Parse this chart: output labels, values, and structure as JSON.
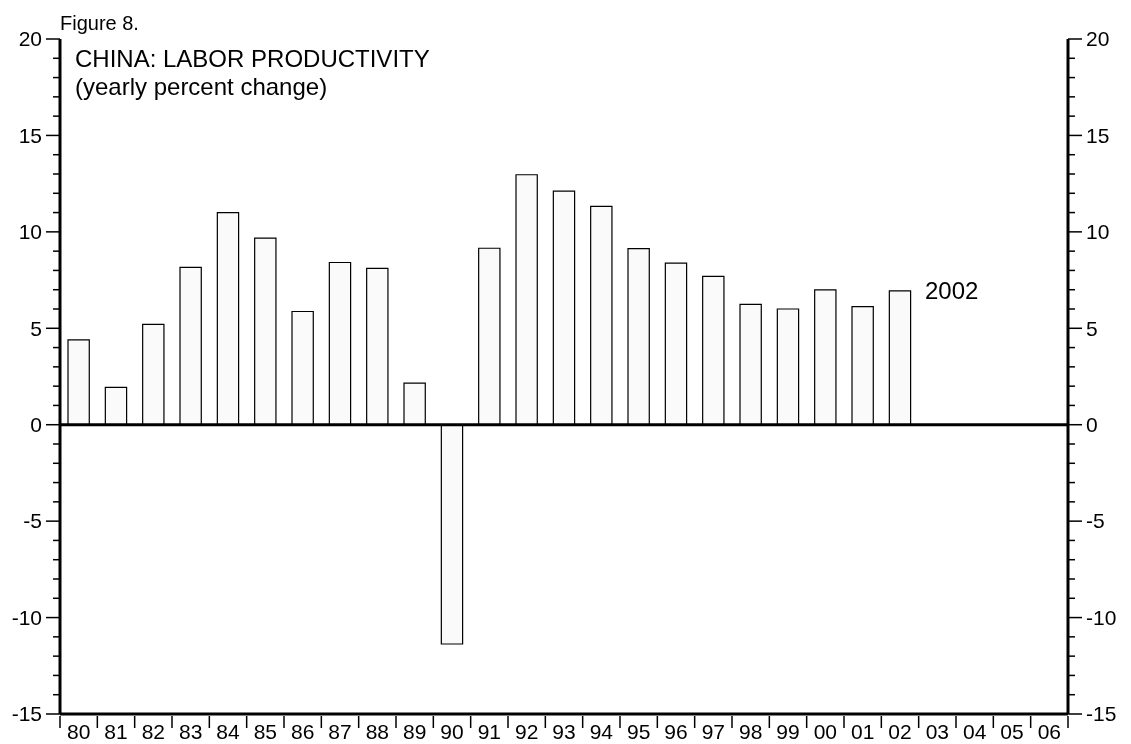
{
  "chart_data": {
    "type": "bar",
    "title": "CHINA: LABOR PRODUCTIVITY",
    "subtitle": "(yearly percent change)",
    "annotations": [
      "Figure 8.",
      {
        "text": "2002",
        "x": "02",
        "y": 6.94
      }
    ],
    "categories": [
      "80",
      "81",
      "82",
      "83",
      "84",
      "85",
      "86",
      "87",
      "88",
      "89",
      "90",
      "91",
      "92",
      "93",
      "94",
      "95",
      "96",
      "97",
      "98",
      "99",
      "00",
      "01",
      "02",
      "03",
      "04",
      "05",
      "06"
    ],
    "values": [
      4.4,
      1.94,
      5.2,
      8.16,
      11.0,
      9.68,
      5.87,
      8.41,
      8.11,
      2.16,
      -11.37,
      9.15,
      12.96,
      12.11,
      11.32,
      9.13,
      8.38,
      7.69,
      6.24,
      6.0,
      6.99,
      6.12,
      6.94,
      null,
      null,
      null,
      null
    ],
    "color": "#fafafa",
    "ref_lines": [
      {
        "axis": "y",
        "value": 0
      }
    ],
    "ylim": [
      -15,
      20
    ],
    "yticks": [
      -15,
      {
        "value": -14,
        "label": null
      },
      {
        "value": -13,
        "label": null
      },
      {
        "value": -12,
        "label": null
      },
      {
        "value": -11,
        "label": null
      },
      -10,
      {
        "value": -9,
        "label": null
      },
      {
        "value": -8,
        "label": null
      },
      {
        "value": -7,
        "label": null
      },
      {
        "value": -6,
        "label": null
      },
      -5,
      {
        "value": -4,
        "label": null
      },
      {
        "value": -3,
        "label": null
      },
      {
        "value": -2,
        "label": null
      },
      {
        "value": -1,
        "label": null
      },
      0,
      {
        "value": 1,
        "label": null
      },
      {
        "value": 2,
        "label": null
      },
      {
        "value": 3,
        "label": null
      },
      {
        "value": 4,
        "label": null
      },
      5,
      {
        "value": 6,
        "label": null
      },
      {
        "value": 7,
        "label": null
      },
      {
        "value": 8,
        "label": null
      },
      {
        "value": 9,
        "label": null
      },
      10,
      {
        "value": 11,
        "label": null
      },
      {
        "value": 12,
        "label": null
      },
      {
        "value": 13,
        "label": null
      },
      {
        "value": 14,
        "label": null
      },
      15,
      {
        "value": 16,
        "label": null
      },
      {
        "value": 17,
        "label": null
      },
      {
        "value": 18,
        "label": null
      },
      {
        "value": 19,
        "label": null
      },
      20
    ],
    "y2lim": [
      -15,
      20
    ],
    "y2ticks": [
      -15,
      {
        "value": -14,
        "label": null
      },
      {
        "value": -13,
        "label": null
      },
      {
        "value": -12,
        "label": null
      },
      {
        "value": -11,
        "label": null
      },
      -10,
      {
        "value": -9,
        "label": null
      },
      {
        "value": -8,
        "label": null
      },
      {
        "value": -7,
        "label": null
      },
      {
        "value": -6,
        "label": null
      },
      -5,
      {
        "value": -4,
        "label": null
      },
      {
        "value": -3,
        "label": null
      },
      {
        "value": -2,
        "label": null
      },
      {
        "value": -1,
        "label": null
      },
      0,
      {
        "value": 1,
        "label": null
      },
      {
        "value": 2,
        "label": null
      },
      {
        "value": 3,
        "label": null
      },
      {
        "value": 4,
        "label": null
      },
      5,
      {
        "value": 6,
        "label": null
      },
      {
        "value": 7,
        "label": null
      },
      {
        "value": 8,
        "label": null
      },
      {
        "value": 9,
        "label": null
      },
      10,
      {
        "value": 11,
        "label": null
      },
      {
        "value": 12,
        "label": null
      },
      {
        "value": 13,
        "label": null
      },
      {
        "value": 14,
        "label": null
      },
      15,
      {
        "value": 16,
        "label": null
      },
      {
        "value": 17,
        "label": null
      },
      {
        "value": 18,
        "label": null
      },
      {
        "value": 19,
        "label": null
      },
      20
    ]
  }
}
